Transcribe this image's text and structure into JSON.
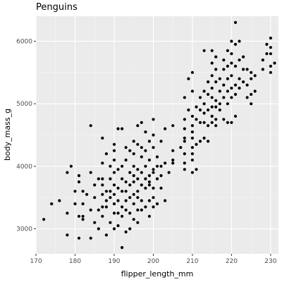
{
  "colors": {
    "panel": "#ebebeb",
    "grid_major": "#ffffff",
    "grid_minor": "#f5f5f5",
    "point": "#000000",
    "tick_text": "#4d4d4d"
  },
  "chart_data": {
    "type": "scatter",
    "title": "Penguins",
    "xlabel": "flipper_length_mm",
    "ylabel": "body_mass_g",
    "xlim": [
      170,
      232
    ],
    "ylim": [
      2600,
      6400
    ],
    "x_ticks": [
      170,
      180,
      190,
      200,
      210,
      220,
      230
    ],
    "y_ticks": [
      3000,
      4000,
      5000,
      6000
    ],
    "x_tick_labels": [
      "170",
      "180",
      "190",
      "200",
      "210",
      "220",
      "230"
    ],
    "y_tick_labels": [
      "3000",
      "4000",
      "5000",
      "6000"
    ],
    "grid": true,
    "legend": "none",
    "points": [
      [
        172,
        3150
      ],
      [
        174,
        3400
      ],
      [
        176,
        3450
      ],
      [
        178,
        3250
      ],
      [
        178,
        2900
      ],
      [
        178,
        3900
      ],
      [
        179,
        4000
      ],
      [
        180,
        3600
      ],
      [
        180,
        3400
      ],
      [
        181,
        3200
      ],
      [
        181,
        2850
      ],
      [
        181,
        3750
      ],
      [
        181,
        3850
      ],
      [
        182,
        3200
      ],
      [
        182,
        3150
      ],
      [
        182,
        3400
      ],
      [
        182,
        3600
      ],
      [
        183,
        3550
      ],
      [
        184,
        2850
      ],
      [
        184,
        3300
      ],
      [
        184,
        3900
      ],
      [
        184,
        4650
      ],
      [
        185,
        3100
      ],
      [
        185,
        3700
      ],
      [
        185,
        3500
      ],
      [
        186,
        3000
      ],
      [
        186,
        3300
      ],
      [
        186,
        3800
      ],
      [
        187,
        3200
      ],
      [
        187,
        3350
      ],
      [
        187,
        3550
      ],
      [
        187,
        3700
      ],
      [
        187,
        3800
      ],
      [
        187,
        4050
      ],
      [
        187,
        4450
      ],
      [
        188,
        2900
      ],
      [
        188,
        3350
      ],
      [
        188,
        3450
      ],
      [
        188,
        3600
      ],
      [
        188,
        4200
      ],
      [
        189,
        3100
      ],
      [
        189,
        3500
      ],
      [
        189,
        3600
      ],
      [
        189,
        3800
      ],
      [
        189,
        4000
      ],
      [
        190,
        3000
      ],
      [
        190,
        3250
      ],
      [
        190,
        3400
      ],
      [
        190,
        3550
      ],
      [
        190,
        3700
      ],
      [
        190,
        3900
      ],
      [
        190,
        4100
      ],
      [
        190,
        4250
      ],
      [
        190,
        4350
      ],
      [
        191,
        3050
      ],
      [
        191,
        3250
      ],
      [
        191,
        3450
      ],
      [
        191,
        3650
      ],
      [
        191,
        3950
      ],
      [
        191,
        4600
      ],
      [
        192,
        2700
      ],
      [
        192,
        3200
      ],
      [
        192,
        3350
      ],
      [
        192,
        3600
      ],
      [
        192,
        3800
      ],
      [
        192,
        4000
      ],
      [
        192,
        4600
      ],
      [
        193,
        2950
      ],
      [
        193,
        3300
      ],
      [
        193,
        3450
      ],
      [
        193,
        3600
      ],
      [
        193,
        3750
      ],
      [
        193,
        4100
      ],
      [
        193,
        4300
      ],
      [
        194,
        3000
      ],
      [
        194,
        3250
      ],
      [
        194,
        3500
      ],
      [
        194,
        3700
      ],
      [
        194,
        3900
      ],
      [
        194,
        4250
      ],
      [
        195,
        3150
      ],
      [
        195,
        3400
      ],
      [
        195,
        3550
      ],
      [
        195,
        3750
      ],
      [
        195,
        3850
      ],
      [
        195,
        4000
      ],
      [
        195,
        4200
      ],
      [
        195,
        4400
      ],
      [
        196,
        3100
      ],
      [
        196,
        3300
      ],
      [
        196,
        3500
      ],
      [
        196,
        3600
      ],
      [
        196,
        3800
      ],
      [
        196,
        3950
      ],
      [
        196,
        4350
      ],
      [
        196,
        4650
      ],
      [
        197,
        3300
      ],
      [
        197,
        3450
      ],
      [
        197,
        3700
      ],
      [
        197,
        3900
      ],
      [
        197,
        4150
      ],
      [
        197,
        4300
      ],
      [
        197,
        4700
      ],
      [
        198,
        3350
      ],
      [
        198,
        3650
      ],
      [
        198,
        3800
      ],
      [
        198,
        4000
      ],
      [
        198,
        4250
      ],
      [
        198,
        4550
      ],
      [
        199,
        3200
      ],
      [
        199,
        3450
      ],
      [
        199,
        3700
      ],
      [
        199,
        3750
      ],
      [
        199,
        3850
      ],
      [
        199,
        4100
      ],
      [
        199,
        4400
      ],
      [
        200,
        3350
      ],
      [
        200,
        3500
      ],
      [
        200,
        3650
      ],
      [
        200,
        3900
      ],
      [
        200,
        3950
      ],
      [
        200,
        4300
      ],
      [
        200,
        4500
      ],
      [
        200,
        4750
      ],
      [
        201,
        3400
      ],
      [
        201,
        3800
      ],
      [
        201,
        4000
      ],
      [
        201,
        4150
      ],
      [
        202,
        3650
      ],
      [
        202,
        3850
      ],
      [
        202,
        4000
      ],
      [
        202,
        4400
      ],
      [
        203,
        3450
      ],
      [
        203,
        4050
      ],
      [
        203,
        4600
      ],
      [
        204,
        3900
      ],
      [
        205,
        4050
      ],
      [
        205,
        4100
      ],
      [
        205,
        4250
      ],
      [
        205,
        4650
      ],
      [
        207,
        4300
      ],
      [
        208,
        4450
      ],
      [
        208,
        3950
      ],
      [
        208,
        4050
      ],
      [
        208,
        4200
      ],
      [
        208,
        4400
      ],
      [
        208,
        4600
      ],
      [
        208,
        4750
      ],
      [
        208,
        5100
      ],
      [
        209,
        4900
      ],
      [
        209,
        5400
      ],
      [
        210,
        3900
      ],
      [
        210,
        4100
      ],
      [
        210,
        4200
      ],
      [
        210,
        4300
      ],
      [
        210,
        4450
      ],
      [
        210,
        4550
      ],
      [
        210,
        4650
      ],
      [
        210,
        4800
      ],
      [
        210,
        5200
      ],
      [
        210,
        5500
      ],
      [
        211,
        3950
      ],
      [
        211,
        4350
      ],
      [
        211,
        4750
      ],
      [
        211,
        4950
      ],
      [
        212,
        4400
      ],
      [
        212,
        4700
      ],
      [
        212,
        4900
      ],
      [
        212,
        5100
      ],
      [
        213,
        4450
      ],
      [
        213,
        4700
      ],
      [
        213,
        4850
      ],
      [
        213,
        5000
      ],
      [
        213,
        5200
      ],
      [
        213,
        5850
      ],
      [
        214,
        4400
      ],
      [
        214,
        4650
      ],
      [
        214,
        4900
      ],
      [
        214,
        5150
      ],
      [
        214,
        5350
      ],
      [
        215,
        4700
      ],
      [
        215,
        4800
      ],
      [
        215,
        4950
      ],
      [
        215,
        5100
      ],
      [
        215,
        5250
      ],
      [
        215,
        5450
      ],
      [
        215,
        5650
      ],
      [
        215,
        5850
      ],
      [
        216,
        4650
      ],
      [
        216,
        4750
      ],
      [
        216,
        4950
      ],
      [
        216,
        5050
      ],
      [
        216,
        5350
      ],
      [
        216,
        5550
      ],
      [
        216,
        5750
      ],
      [
        217,
        4900
      ],
      [
        217,
        5000
      ],
      [
        217,
        5200
      ],
      [
        217,
        5400
      ],
      [
        218,
        4750
      ],
      [
        218,
        5100
      ],
      [
        218,
        5300
      ],
      [
        218,
        5550
      ],
      [
        218,
        5700
      ],
      [
        219,
        4700
      ],
      [
        219,
        5000
      ],
      [
        219,
        5200
      ],
      [
        219,
        5400
      ],
      [
        219,
        5600
      ],
      [
        219,
        5850
      ],
      [
        220,
        4700
      ],
      [
        220,
        5100
      ],
      [
        220,
        5250
      ],
      [
        220,
        5450
      ],
      [
        220,
        5650
      ],
      [
        220,
        5800
      ],
      [
        220,
        6000
      ],
      [
        221,
        4800
      ],
      [
        221,
        5150
      ],
      [
        221,
        5300
      ],
      [
        221,
        5600
      ],
      [
        221,
        5950
      ],
      [
        221,
        6300
      ],
      [
        222,
        5250
      ],
      [
        222,
        5400
      ],
      [
        222,
        5700
      ],
      [
        222,
        6000
      ],
      [
        223,
        5350
      ],
      [
        223,
        5550
      ],
      [
        223,
        5750
      ],
      [
        224,
        5100
      ],
      [
        224,
        5300
      ],
      [
        224,
        5550
      ],
      [
        225,
        5000
      ],
      [
        225,
        5150
      ],
      [
        225,
        5400
      ],
      [
        225,
        5500
      ],
      [
        226,
        5200
      ],
      [
        226,
        5450
      ],
      [
        228,
        5550
      ],
      [
        228,
        5700
      ],
      [
        229,
        5800
      ],
      [
        229,
        5950
      ],
      [
        230,
        5500
      ],
      [
        230,
        5600
      ],
      [
        230,
        5800
      ],
      [
        230,
        5900
      ],
      [
        230,
        6050
      ],
      [
        231,
        5650
      ]
    ]
  }
}
